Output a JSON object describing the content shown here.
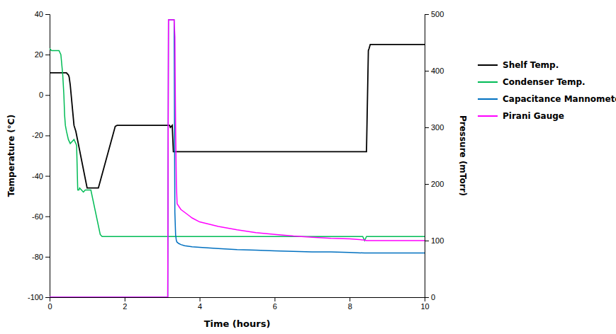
{
  "chart_data": {
    "type": "line",
    "xlabel": "Time (hours)",
    "ylabel": "Temperature (°C)",
    "y2label": "Pressure (mTorr)",
    "xlim": [
      0,
      10
    ],
    "ylim": [
      -100,
      40
    ],
    "y2lim": [
      0,
      500
    ],
    "xticks": [
      0,
      2,
      4,
      6,
      8,
      10
    ],
    "yticks": [
      -100,
      -80,
      -60,
      -40,
      -20,
      0,
      20,
      40
    ],
    "y2ticks": [
      0,
      100,
      200,
      300,
      400,
      500
    ],
    "grid": false,
    "legend": "right",
    "series": [
      {
        "name": "Shelf Temp.",
        "color": "#000000",
        "axis": "y",
        "x": [
          0,
          0.45,
          0.47,
          0.5,
          0.52,
          0.55,
          0.6,
          0.65,
          0.7,
          1.0,
          1.05,
          1.1,
          1.15,
          1.2,
          1.25,
          1.3,
          1.75,
          1.8,
          1.85,
          1.9,
          1.95,
          2.0,
          3.2,
          3.22,
          3.27,
          3.3,
          3.35,
          8.45,
          8.5,
          8.52,
          8.55,
          10.0
        ],
        "values": [
          11,
          11,
          10.5,
          10,
          9,
          5,
          -5,
          -15,
          -18,
          -46,
          -46,
          -46,
          -46,
          -46,
          -46,
          -46,
          -15.5,
          -15,
          -15,
          -15,
          -15,
          -15,
          -15,
          -16,
          -15,
          -28,
          -28,
          -28,
          22,
          23,
          25,
          25
        ]
      },
      {
        "name": "Condenser Temp.",
        "color": "#00bb55",
        "axis": "y",
        "x": [
          0,
          0.05,
          0.25,
          0.3,
          0.35,
          0.38,
          0.4,
          0.42,
          0.45,
          0.5,
          0.55,
          0.6,
          0.65,
          0.7,
          0.72,
          0.75,
          0.78,
          0.8,
          0.85,
          0.9,
          0.95,
          1.0,
          1.05,
          1.1,
          1.35,
          1.4,
          1.42,
          1.45,
          1.6,
          1.65,
          3.25,
          3.3,
          3.35,
          8.3,
          8.35,
          8.4,
          8.45,
          8.5,
          10.0
        ],
        "values": [
          23,
          22,
          22,
          20,
          10,
          0,
          -10,
          -15,
          -18,
          -22,
          -24,
          -23,
          -22,
          -24,
          -25,
          -47,
          -47,
          -46,
          -47,
          -48,
          -47,
          -47,
          -47,
          -47,
          -69,
          -70,
          -70,
          -70,
          -70,
          -70,
          -70,
          -70,
          -70,
          -70,
          -70,
          -72,
          -70,
          -70,
          -70
        ]
      },
      {
        "name": "Capacitance Mannometer",
        "color": "#0070c0",
        "axis": "y2",
        "x": [
          0,
          3.15,
          3.17,
          3.19,
          3.2,
          3.25,
          3.28,
          3.3,
          3.32,
          3.34,
          3.36,
          3.38,
          3.4,
          3.42,
          3.44,
          3.5,
          3.6,
          3.7,
          3.8,
          4.0,
          4.5,
          5.0,
          5.5,
          6.0,
          6.5,
          7.0,
          7.5,
          8.0,
          8.4,
          8.45,
          8.5,
          8.52,
          8.55,
          9.0,
          10.0
        ],
        "values": [
          0,
          0,
          490,
          490,
          490,
          490,
          490,
          490,
          490,
          150,
          110,
          100,
          97,
          96,
          95,
          93,
          91,
          90,
          89,
          88,
          86,
          84,
          83,
          82,
          81,
          80,
          80,
          79,
          78,
          78,
          78,
          78,
          78,
          78,
          78
        ]
      },
      {
        "name": "Pirani Gauge",
        "color": "#ff00ff",
        "axis": "y2",
        "x": [
          0,
          3.15,
          3.17,
          3.19,
          3.2,
          3.25,
          3.28,
          3.3,
          3.32,
          3.34,
          3.36,
          3.38,
          3.4,
          3.45,
          3.5,
          3.6,
          3.7,
          3.8,
          4.0,
          4.5,
          5.0,
          5.5,
          6.0,
          6.5,
          7.0,
          7.5,
          8.0,
          8.4,
          8.45,
          8.5,
          8.52,
          8.55,
          9.0,
          10.0
        ],
        "values": [
          0,
          0,
          490,
          490,
          490,
          490,
          490,
          490,
          490,
          460,
          300,
          200,
          165,
          160,
          155,
          150,
          145,
          140,
          133,
          125,
          119,
          114,
          111,
          108,
          106,
          104,
          103,
          101,
          100,
          100,
          100,
          100,
          100,
          100
        ]
      }
    ]
  }
}
